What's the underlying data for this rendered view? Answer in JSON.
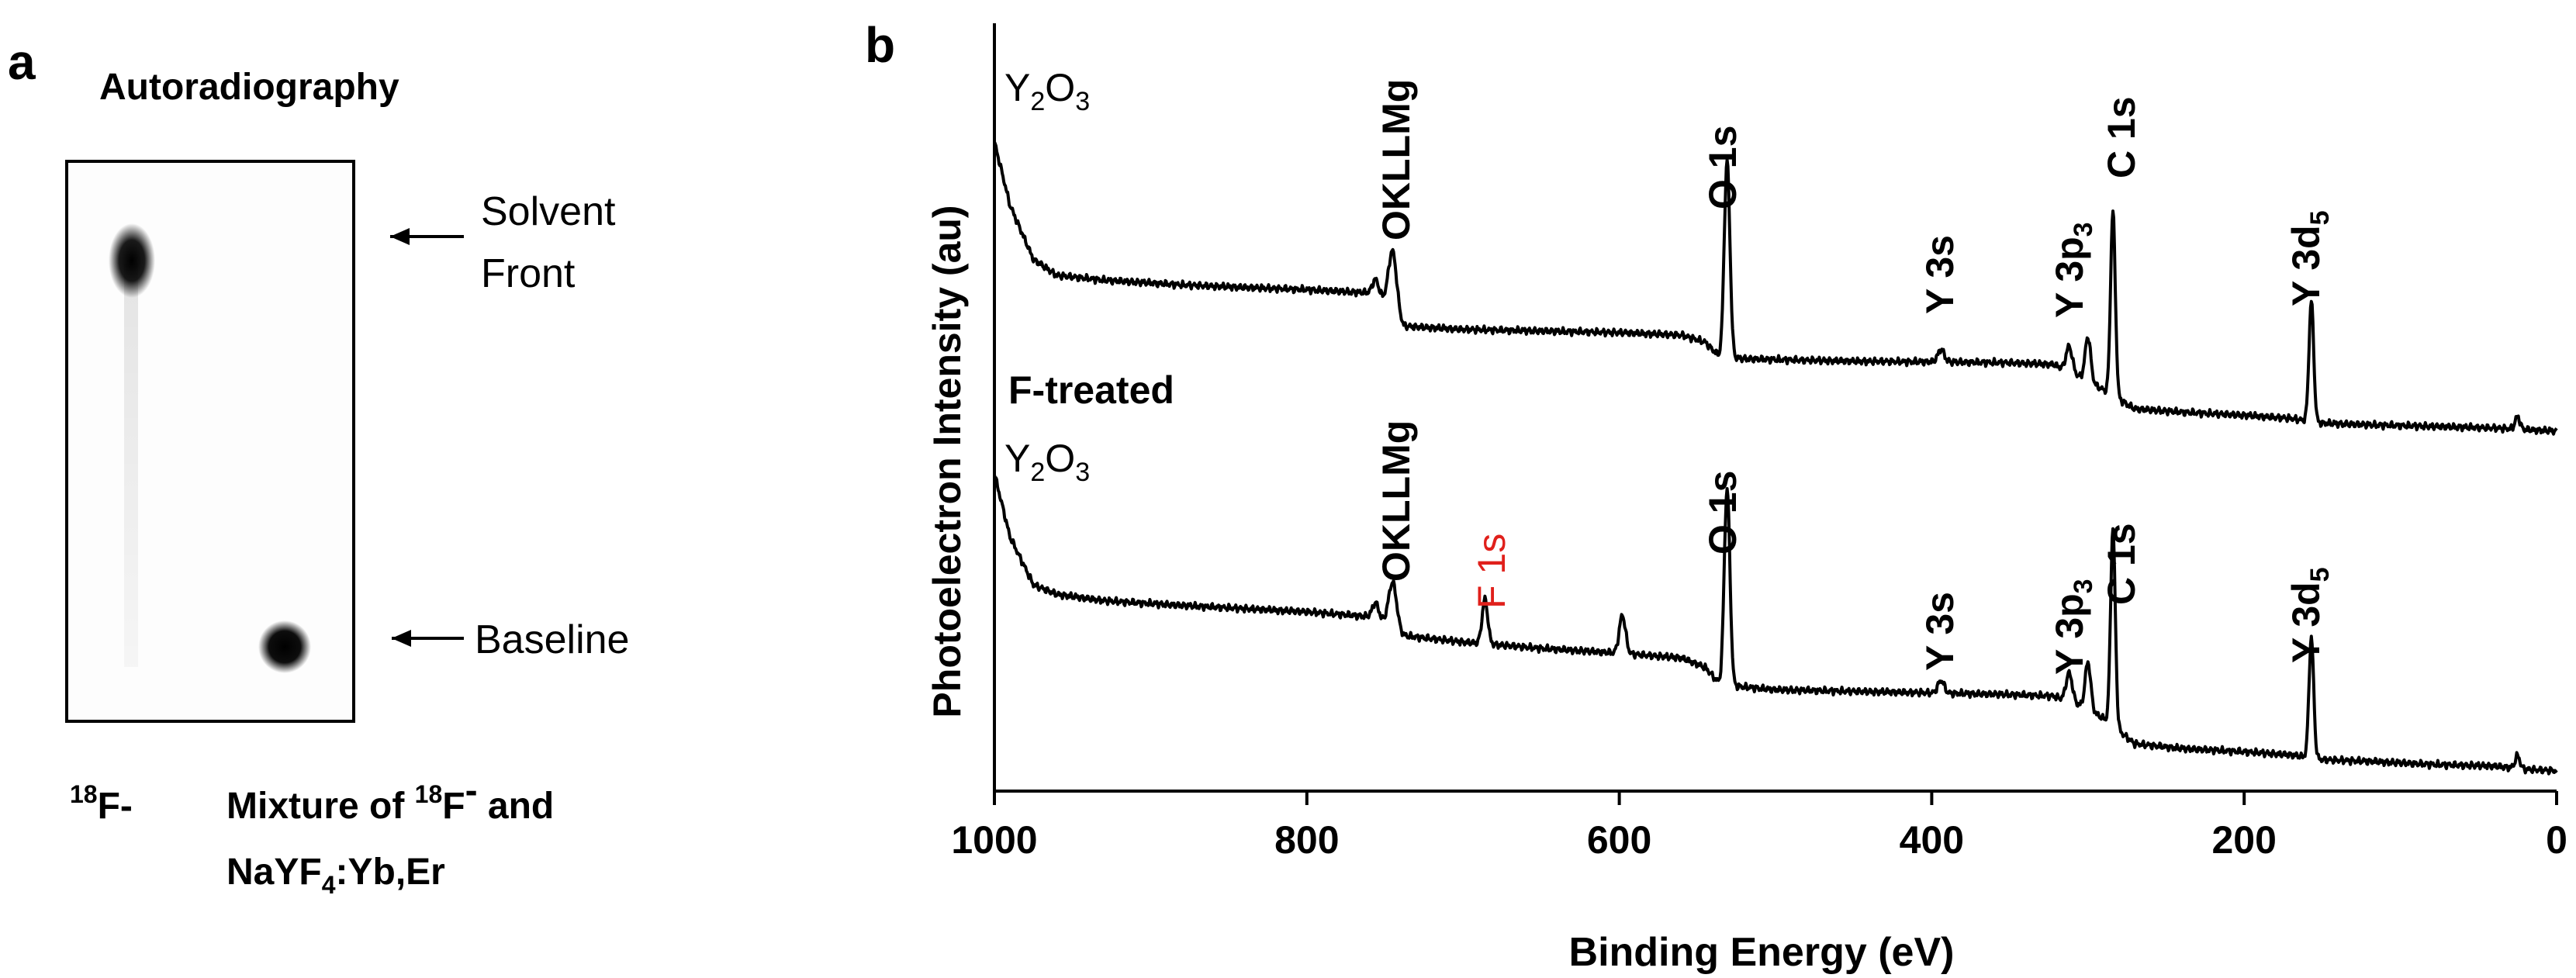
{
  "panel_a": {
    "panel_letter": "a",
    "title": "Autoradiography",
    "arrow_labels": [
      "Solvent",
      "Front",
      "Baseline"
    ],
    "lane_labels": {
      "lane1": "F-",
      "lane1_sup": "18",
      "lane2_line1_a": "Mixture of ",
      "lane2_line1_sup": "18",
      "lane2_line1_b": "F",
      "lane2_line1_sup2": "-",
      "lane2_line1_c": " and",
      "lane2_line2_a": "NaYF",
      "lane2_line2_sub": "4",
      "lane2_line2_b": ":Yb,Er"
    }
  },
  "panel_b": {
    "panel_letter": "b",
    "colors": {
      "trace": "#000000",
      "f1s_label": "#e0201b"
    },
    "chart_data": {
      "type": "line",
      "xlabel": "Binding Energy (eV)",
      "ylabel": "Photoelectron Intensity (au)",
      "xlim": [
        1000,
        0
      ],
      "x_reversed": true,
      "xticks": [
        "1000",
        "800",
        "600",
        "400",
        "200",
        "0"
      ],
      "yticks": [],
      "sample_labels": {
        "top": {
          "line1": "Y",
          "sub1": "2",
          "mid": "O",
          "sub2": "3"
        },
        "bottom": {
          "prefix": "F-treated",
          "line1": "Y",
          "sub1": "2",
          "mid": "O",
          "sub2": "3"
        }
      },
      "peak_labels": {
        "okllmg": "OKLLMg",
        "o1s": "O 1s",
        "f1s": "F 1s",
        "y3s": "Y 3s",
        "y3p_a": "Y 3p",
        "y3p_sub": "3",
        "c1s": "C 1s",
        "y3d_a": "Y 3d",
        "y3d_sub": "5"
      },
      "series": [
        {
          "baseline": [
            [
              1000,
              0.92
            ],
            [
              990,
              0.72
            ],
            [
              975,
              0.55
            ],
            [
              960,
              0.5
            ],
            [
              930,
              0.485
            ],
            [
              880,
              0.47
            ],
            [
              840,
              0.462
            ],
            [
              800,
              0.455
            ],
            [
              760,
              0.445
            ],
            [
              748,
              0.42
            ],
            [
              738,
              0.34
            ],
            [
              700,
              0.33
            ],
            [
              650,
              0.325
            ],
            [
              600,
              0.32
            ],
            [
              560,
              0.312
            ],
            [
              545,
              0.29
            ],
            [
              535,
              0.24
            ],
            [
              500,
              0.235
            ],
            [
              450,
              0.23
            ],
            [
              400,
              0.228
            ],
            [
              350,
              0.225
            ],
            [
              322,
              0.22
            ],
            [
              305,
              0.18
            ],
            [
              290,
              0.14
            ],
            [
              270,
              0.08
            ],
            [
              240,
              0.07
            ],
            [
              200,
              0.06
            ],
            [
              170,
              0.05
            ],
            [
              150,
              0.035
            ],
            [
              120,
              0.03
            ],
            [
              80,
              0.025
            ],
            [
              40,
              0.02
            ],
            [
              20,
              0.015
            ],
            [
              0,
              0.01
            ]
          ],
          "peaks": [
            {
              "center": 756,
              "height": 0.05,
              "width": 2
            },
            {
              "center": 745,
              "height": 0.18,
              "width": 2.5
            },
            {
              "center": 531,
              "height": 0.62,
              "width": 1.8
            },
            {
              "center": 394,
              "height": 0.04,
              "width": 2
            },
            {
              "center": 312,
              "height": 0.08,
              "width": 2
            },
            {
              "center": 300,
              "height": 0.14,
              "width": 1.8
            },
            {
              "center": 284,
              "height": 0.58,
              "width": 1.5
            },
            {
              "center": 157,
              "height": 0.38,
              "width": 1.5
            },
            {
              "center": 25,
              "height": 0.04,
              "width": 1.5
            }
          ]
        },
        {
          "baseline": [
            [
              1000,
              0.95
            ],
            [
              990,
              0.75
            ],
            [
              975,
              0.6
            ],
            [
              960,
              0.57
            ],
            [
              930,
              0.55
            ],
            [
              880,
              0.535
            ],
            [
              840,
              0.525
            ],
            [
              800,
              0.515
            ],
            [
              760,
              0.5
            ],
            [
              748,
              0.48
            ],
            [
              738,
              0.44
            ],
            [
              700,
              0.42
            ],
            [
              650,
              0.4
            ],
            [
              600,
              0.385
            ],
            [
              560,
              0.37
            ],
            [
              545,
              0.34
            ],
            [
              535,
              0.285
            ],
            [
              500,
              0.27
            ],
            [
              450,
              0.265
            ],
            [
              400,
              0.26
            ],
            [
              350,
              0.255
            ],
            [
              322,
              0.25
            ],
            [
              305,
              0.22
            ],
            [
              290,
              0.18
            ],
            [
              270,
              0.1
            ],
            [
              240,
              0.085
            ],
            [
              200,
              0.075
            ],
            [
              170,
              0.065
            ],
            [
              150,
              0.05
            ],
            [
              120,
              0.045
            ],
            [
              80,
              0.035
            ],
            [
              40,
              0.03
            ],
            [
              20,
              0.02
            ],
            [
              0,
              0.015
            ]
          ],
          "peaks": [
            {
              "center": 756,
              "height": 0.05,
              "width": 2
            },
            {
              "center": 745,
              "height": 0.14,
              "width": 2.5
            },
            {
              "center": 686,
              "height": 0.14,
              "width": 1.8
            },
            {
              "center": 598,
              "height": 0.12,
              "width": 2
            },
            {
              "center": 531,
              "height": 0.62,
              "width": 1.8
            },
            {
              "center": 394,
              "height": 0.04,
              "width": 2
            },
            {
              "center": 312,
              "height": 0.09,
              "width": 2
            },
            {
              "center": 300,
              "height": 0.15,
              "width": 1.8
            },
            {
              "center": 284,
              "height": 0.62,
              "width": 1.5
            },
            {
              "center": 157,
              "height": 0.38,
              "width": 1.5
            },
            {
              "center": 25,
              "height": 0.04,
              "width": 1.5
            }
          ]
        }
      ]
    }
  }
}
